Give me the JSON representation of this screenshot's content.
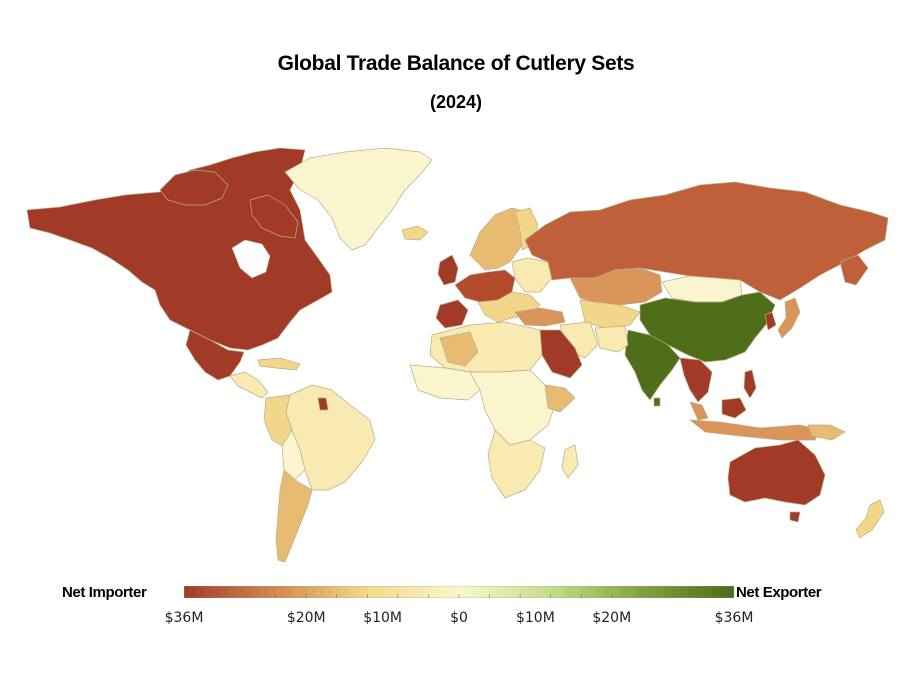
{
  "title": "Global Trade Balance of Cutlery Sets",
  "subtitle": "(2024)",
  "legend": {
    "left_label": "Net Importer",
    "right_label": "Net Exporter",
    "scale_min": -36,
    "scale_max": 36,
    "unit": "M",
    "colors": [
      "#a23a28",
      "#d28a50",
      "#f2d98a",
      "#fbf7c8",
      "#c5dd8a",
      "#7ea43e",
      "#4a6a18"
    ],
    "ticks": [
      {
        "value": -36,
        "label": "$36M"
      },
      {
        "value": -20,
        "label": "$20M"
      },
      {
        "value": -10,
        "label": "$10M"
      },
      {
        "value": 0,
        "label": "$0"
      },
      {
        "value": 10,
        "label": "$10M"
      },
      {
        "value": 20,
        "label": "$20M"
      },
      {
        "value": 36,
        "label": "$36M"
      }
    ]
  },
  "palette": {
    "dark_red": "#9c3526",
    "red": "#b24a2e",
    "brown": "#c0603a",
    "orange": "#d9955a",
    "tan": "#e8bb72",
    "yellow": "#f2d78a",
    "pale": "#f8eab0",
    "cream": "#fbf5cf",
    "dark_green": "#4f6e19"
  },
  "chart_data": {
    "type": "map",
    "metric": "trade balance (USD millions)",
    "regions": [
      {
        "region": "USA & Canada",
        "value": -36
      },
      {
        "region": "Mexico",
        "value": -36
      },
      {
        "region": "Greenland",
        "value": 1
      },
      {
        "region": "Russia",
        "value": -28
      },
      {
        "region": "Australia",
        "value": -36
      },
      {
        "region": "China",
        "value": 36
      },
      {
        "region": "India",
        "value": 36
      },
      {
        "region": "Japan",
        "value": -20
      },
      {
        "region": "Saudi Arabia",
        "value": -36
      },
      {
        "region": "Brazil",
        "value": -6
      },
      {
        "region": "Argentina & Chile",
        "value": -12
      },
      {
        "region": "Kazakhstan",
        "value": -18
      },
      {
        "region": "Mongolia",
        "value": 2
      },
      {
        "region": "Thailand & Vietnam",
        "value": -34
      },
      {
        "region": "Indonesia",
        "value": -18
      },
      {
        "region": "Philippines",
        "value": -30
      },
      {
        "region": "South Korea",
        "value": -34
      },
      {
        "region": "Africa (most)",
        "value": -4
      },
      {
        "region": "Western Europe",
        "value": -22
      },
      {
        "region": "Scandinavia",
        "value": -14
      },
      {
        "region": "New Zealand",
        "value": -6
      },
      {
        "region": "Iran",
        "value": -4
      }
    ]
  }
}
